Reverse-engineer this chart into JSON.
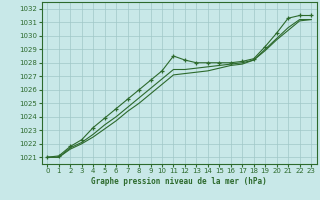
{
  "xlabel": "Graphe pression niveau de la mer (hPa)",
  "background_color": "#c8e8e8",
  "grid_color": "#a0c8c8",
  "line_color": "#2d6a2d",
  "x_values": [
    0,
    1,
    2,
    3,
    4,
    5,
    6,
    7,
    8,
    9,
    10,
    11,
    12,
    13,
    14,
    15,
    16,
    17,
    18,
    19,
    20,
    21,
    22,
    23
  ],
  "series1": [
    1021.0,
    1021.1,
    1021.8,
    1022.3,
    1023.2,
    1023.9,
    1024.6,
    1025.3,
    1026.0,
    1026.7,
    1027.4,
    1028.5,
    1028.2,
    1028.0,
    1028.0,
    1028.0,
    1028.0,
    1028.1,
    1028.3,
    1029.2,
    1030.2,
    1031.3,
    1031.5,
    1031.5
  ],
  "series2": [
    1021.0,
    1021.0,
    1021.7,
    1022.1,
    1022.7,
    1023.4,
    1024.0,
    1024.7,
    1025.4,
    1026.1,
    1026.8,
    1027.5,
    1027.5,
    1027.6,
    1027.7,
    1027.8,
    1027.9,
    1028.0,
    1028.2,
    1029.0,
    1029.8,
    1030.6,
    1031.2,
    1031.2
  ],
  "series3": [
    1021.0,
    1021.0,
    1021.6,
    1022.0,
    1022.5,
    1023.1,
    1023.7,
    1024.4,
    1025.0,
    1025.7,
    1026.4,
    1027.1,
    1027.2,
    1027.3,
    1027.4,
    1027.6,
    1027.8,
    1027.9,
    1028.2,
    1028.9,
    1029.7,
    1030.4,
    1031.1,
    1031.2
  ],
  "ylim_min": 1020.5,
  "ylim_max": 1032.5,
  "yticks": [
    1021,
    1022,
    1023,
    1024,
    1025,
    1026,
    1027,
    1028,
    1029,
    1030,
    1031,
    1032
  ],
  "xticks": [
    0,
    1,
    2,
    3,
    4,
    5,
    6,
    7,
    8,
    9,
    10,
    11,
    12,
    13,
    14,
    15,
    16,
    17,
    18,
    19,
    20,
    21,
    22,
    23
  ]
}
